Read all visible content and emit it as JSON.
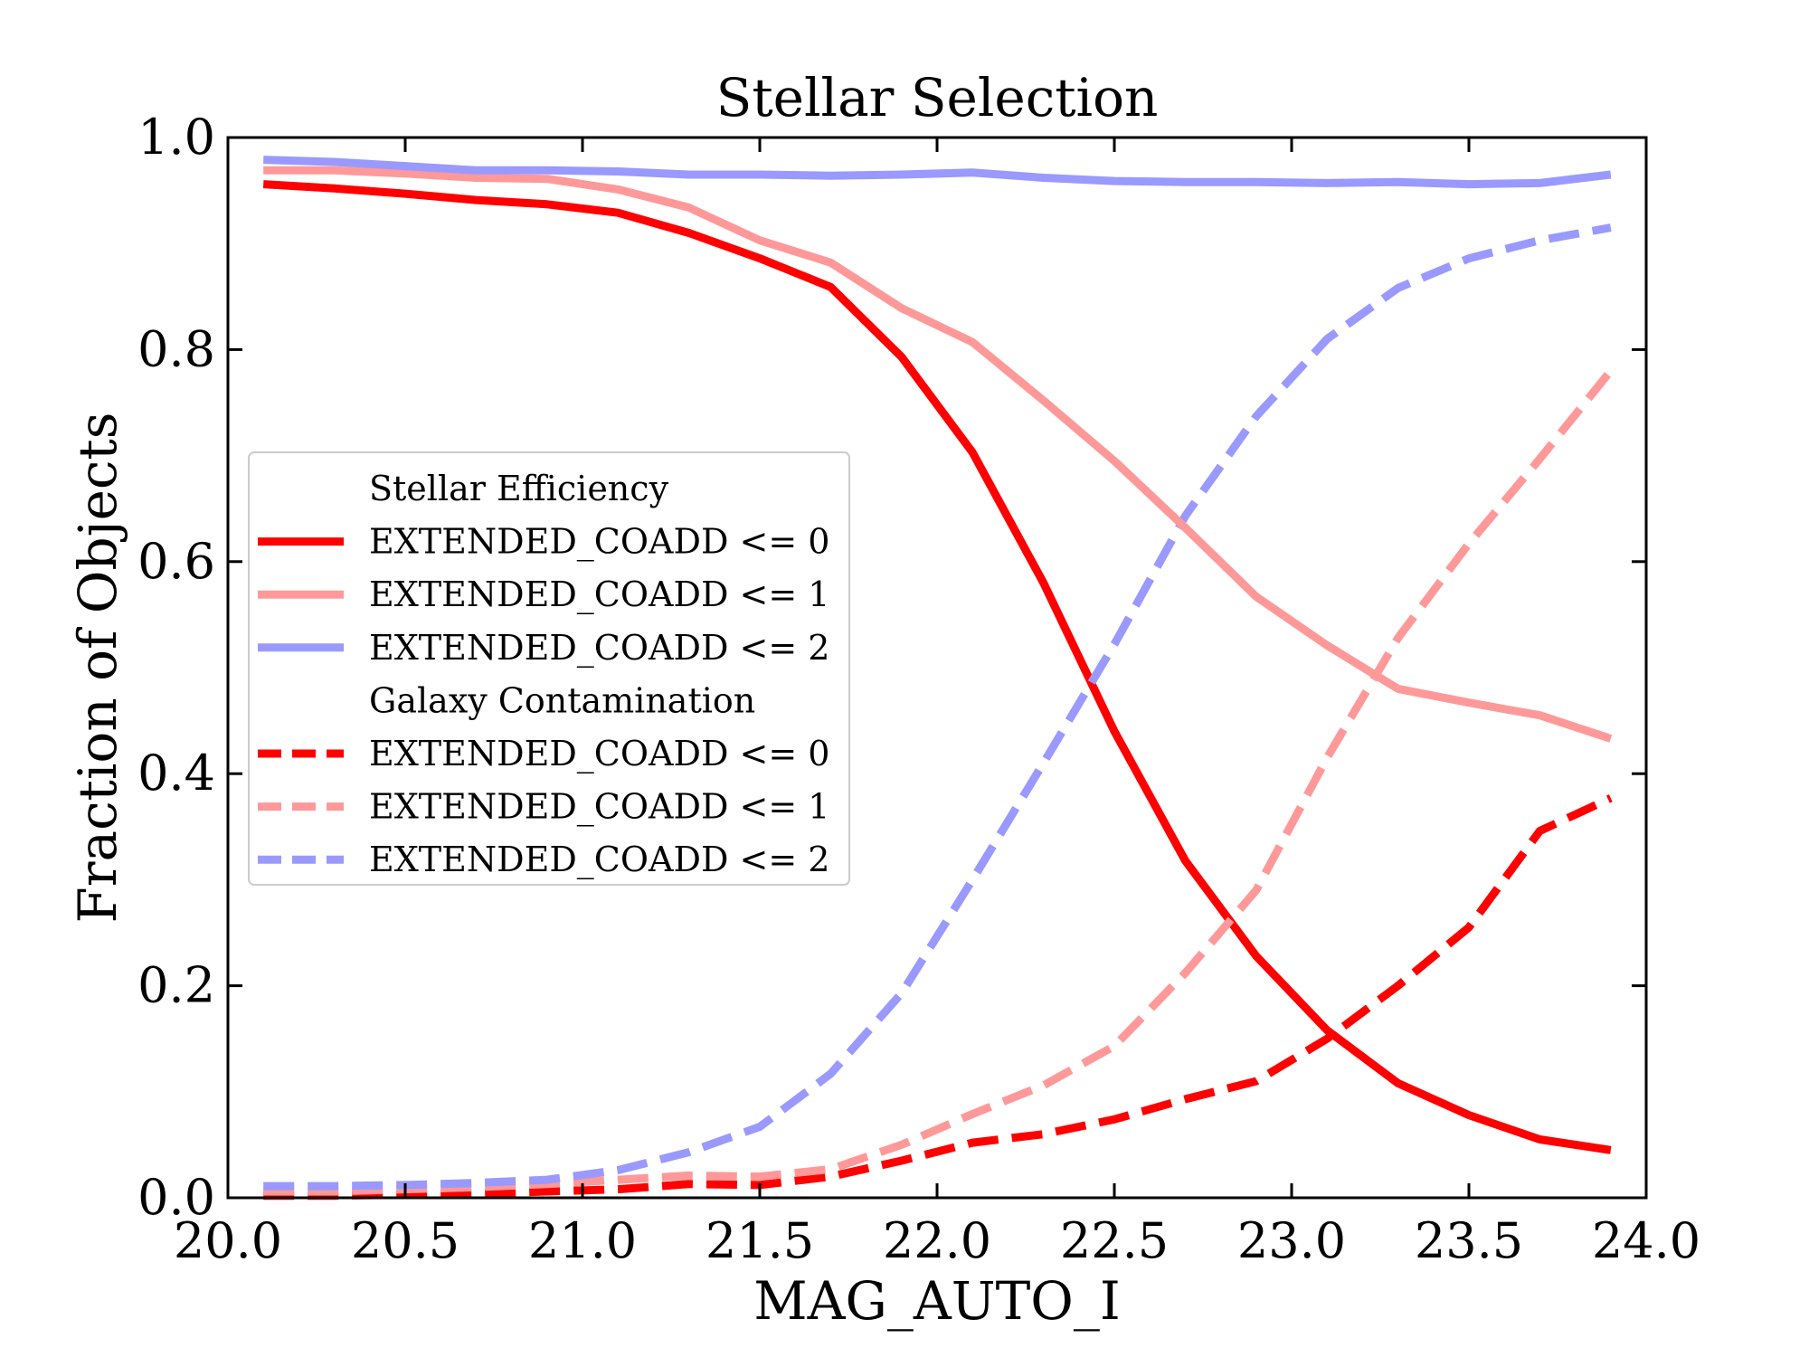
{
  "chart_data": {
    "type": "line",
    "title": "Stellar Selection",
    "xlabel": "MAG_AUTO_I",
    "ylabel": "Fraction of Objects",
    "xlim": [
      20.0,
      24.0
    ],
    "ylim": [
      0.0,
      1.0
    ],
    "x_ticks": [
      20.0,
      20.5,
      21.0,
      21.5,
      22.0,
      22.5,
      23.0,
      23.5,
      24.0
    ],
    "x_tick_labels": [
      "20.0",
      "20.5",
      "21.0",
      "21.5",
      "22.0",
      "22.5",
      "23.0",
      "23.5",
      "24.0"
    ],
    "y_ticks": [
      0.0,
      0.2,
      0.4,
      0.6,
      0.8,
      1.0
    ],
    "y_tick_labels": [
      "0.0",
      "0.2",
      "0.4",
      "0.6",
      "0.8",
      "1.0"
    ],
    "grid": false,
    "legend_position": "center-left",
    "x": [
      20.1,
      20.3,
      20.5,
      20.7,
      20.9,
      21.1,
      21.3,
      21.5,
      21.7,
      21.9,
      22.1,
      22.3,
      22.5,
      22.7,
      22.9,
      23.1,
      23.3,
      23.5,
      23.7,
      23.9
    ],
    "legend_groups": [
      {
        "title": "Stellar Efficiency",
        "series": [
          {
            "name": "EXTENDED_COADD <= 0",
            "color": "#ff0000",
            "linestyle": "solid",
            "values": [
              0.956,
              0.952,
              0.947,
              0.941,
              0.937,
              0.929,
              0.91,
              0.886,
              0.859,
              0.793,
              0.703,
              0.58,
              0.44,
              0.318,
              0.228,
              0.158,
              0.108,
              0.078,
              0.055,
              0.045
            ]
          },
          {
            "name": "EXTENDED_COADD <= 1",
            "color": "#ff9999",
            "linestyle": "solid",
            "values": [
              0.969,
              0.969,
              0.966,
              0.962,
              0.961,
              0.951,
              0.934,
              0.903,
              0.882,
              0.839,
              0.807,
              0.752,
              0.695,
              0.632,
              0.567,
              0.521,
              0.48,
              0.467,
              0.455,
              0.433
            ]
          },
          {
            "name": "EXTENDED_COADD <= 2",
            "color": "#9999ff",
            "linestyle": "solid",
            "values": [
              0.979,
              0.977,
              0.973,
              0.969,
              0.969,
              0.968,
              0.965,
              0.965,
              0.964,
              0.965,
              0.967,
              0.962,
              0.959,
              0.958,
              0.958,
              0.957,
              0.958,
              0.956,
              0.957,
              0.965
            ]
          }
        ]
      },
      {
        "title": "Galaxy Contamination",
        "series": [
          {
            "name": "EXTENDED_COADD <= 0",
            "color": "#ff0000",
            "linestyle": "dashed",
            "values": [
              0.002,
              0.002,
              0.003,
              0.004,
              0.006,
              0.008,
              0.013,
              0.012,
              0.02,
              0.035,
              0.052,
              0.06,
              0.074,
              0.093,
              0.11,
              0.15,
              0.2,
              0.255,
              0.346,
              0.377
            ]
          },
          {
            "name": "EXTENDED_COADD <= 1",
            "color": "#ff9999",
            "linestyle": "dashed",
            "values": [
              0.006,
              0.006,
              0.008,
              0.01,
              0.013,
              0.017,
              0.021,
              0.02,
              0.027,
              0.05,
              0.079,
              0.106,
              0.143,
              0.212,
              0.29,
              0.415,
              0.528,
              0.617,
              0.697,
              0.78
            ]
          },
          {
            "name": "EXTENDED_COADD <= 2",
            "color": "#9999ff",
            "linestyle": "dashed",
            "values": [
              0.011,
              0.011,
              0.012,
              0.014,
              0.017,
              0.026,
              0.043,
              0.067,
              0.117,
              0.193,
              0.3,
              0.41,
              0.522,
              0.643,
              0.737,
              0.81,
              0.858,
              0.886,
              0.903,
              0.915
            ]
          }
        ]
      }
    ]
  }
}
